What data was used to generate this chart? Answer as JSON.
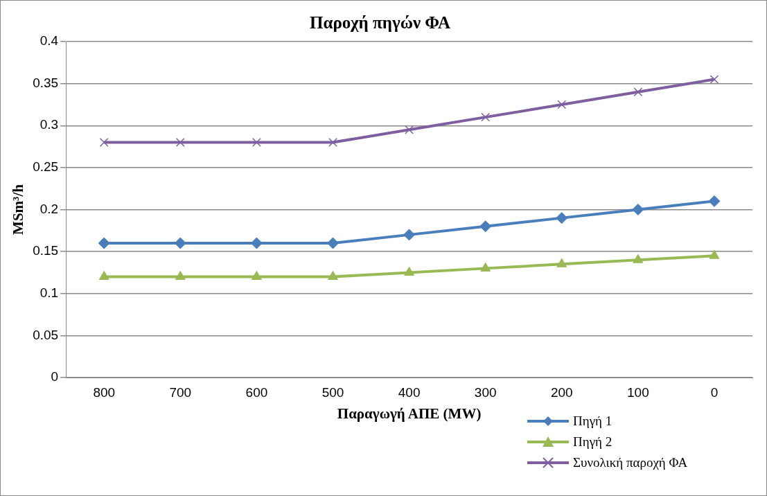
{
  "chart_data": {
    "type": "line",
    "title": "Παροχή πηγών ΦΑ",
    "xlabel": "Παραγωγή ΑΠΕ (MW)",
    "ylabel": "MSm³/h",
    "categories": [
      "800",
      "700",
      "600",
      "500",
      "400",
      "300",
      "200",
      "100",
      "0"
    ],
    "series": [
      {
        "name": "Πηγή 1",
        "color": "#4a7ebb",
        "marker": "diamond",
        "values": [
          0.16,
          0.16,
          0.16,
          0.16,
          0.17,
          0.18,
          0.19,
          0.2,
          0.21
        ]
      },
      {
        "name": "Πηγή 2",
        "color": "#98b954",
        "marker": "triangle",
        "values": [
          0.12,
          0.12,
          0.12,
          0.12,
          0.125,
          0.13,
          0.135,
          0.14,
          0.145
        ]
      },
      {
        "name": "Συνολική παροχή ΦΑ",
        "color": "#7d5fa0",
        "marker": "cross",
        "values": [
          0.28,
          0.28,
          0.28,
          0.28,
          0.295,
          0.31,
          0.325,
          0.34,
          0.355
        ]
      }
    ],
    "ylim": [
      0,
      0.4
    ],
    "yticks": [
      0,
      0.05,
      0.1,
      0.15,
      0.2,
      0.25,
      0.3,
      0.35,
      0.4
    ],
    "grid": "y",
    "legend": "bottom right",
    "line_style": "solid"
  }
}
